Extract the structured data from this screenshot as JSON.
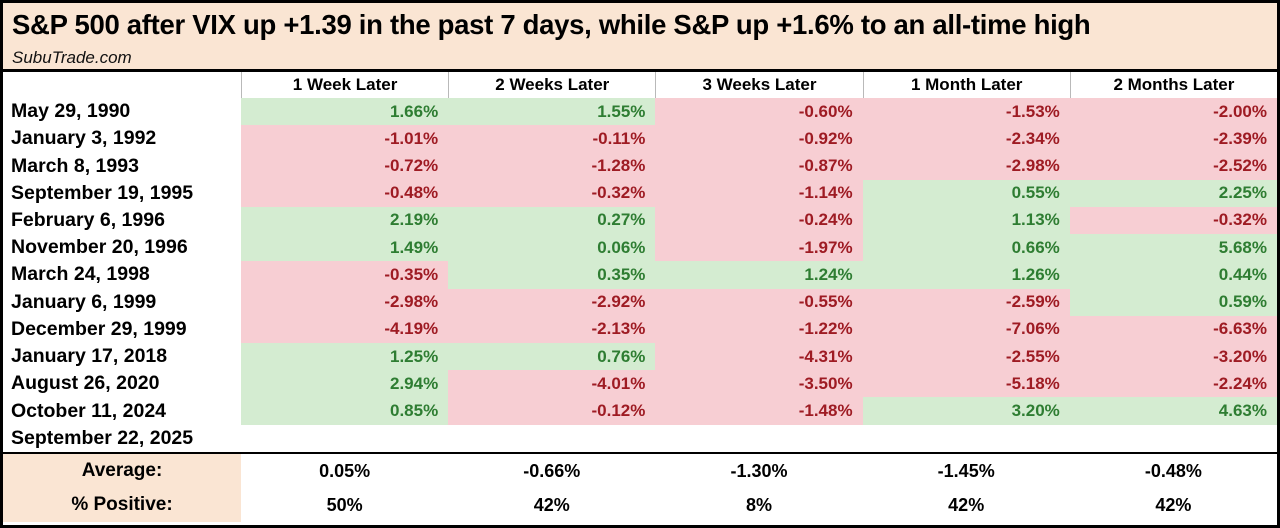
{
  "chart_data": {
    "type": "table",
    "title": "S&P 500 after VIX up +1.39 in the past 7 days, while S&P up +1.6% to an all-time high",
    "source": "SubuTrade.com",
    "columns": [
      "1 Week Later",
      "2 Weeks Later",
      "3 Weeks Later",
      "1 Month Later",
      "2 Months Later"
    ],
    "rows": [
      {
        "date": "May 29, 1990",
        "values": [
          "1.66%",
          "1.55%",
          "-0.60%",
          "-1.53%",
          "-2.00%"
        ]
      },
      {
        "date": "January 3, 1992",
        "values": [
          "-1.01%",
          "-0.11%",
          "-0.92%",
          "-2.34%",
          "-2.39%"
        ]
      },
      {
        "date": "March 8, 1993",
        "values": [
          "-0.72%",
          "-1.28%",
          "-0.87%",
          "-2.98%",
          "-2.52%"
        ]
      },
      {
        "date": "September 19, 1995",
        "values": [
          "-0.48%",
          "-0.32%",
          "-1.14%",
          "0.55%",
          "2.25%"
        ]
      },
      {
        "date": "February 6, 1996",
        "values": [
          "2.19%",
          "0.27%",
          "-0.24%",
          "1.13%",
          "-0.32%"
        ]
      },
      {
        "date": "November 20, 1996",
        "values": [
          "1.49%",
          "0.06%",
          "-1.97%",
          "0.66%",
          "5.68%"
        ]
      },
      {
        "date": "March 24, 1998",
        "values": [
          "-0.35%",
          "0.35%",
          "1.24%",
          "1.26%",
          "0.44%"
        ]
      },
      {
        "date": "January 6, 1999",
        "values": [
          "-2.98%",
          "-2.92%",
          "-0.55%",
          "-2.59%",
          "0.59%"
        ]
      },
      {
        "date": "December 29, 1999",
        "values": [
          "-4.19%",
          "-2.13%",
          "-1.22%",
          "-7.06%",
          "-6.63%"
        ]
      },
      {
        "date": "January 17, 2018",
        "values": [
          "1.25%",
          "0.76%",
          "-4.31%",
          "-2.55%",
          "-3.20%"
        ]
      },
      {
        "date": "August 26, 2020",
        "values": [
          "2.94%",
          "-4.01%",
          "-3.50%",
          "-5.18%",
          "-2.24%"
        ]
      },
      {
        "date": "October 11, 2024",
        "values": [
          "0.85%",
          "-0.12%",
          "-1.48%",
          "3.20%",
          "4.63%"
        ]
      },
      {
        "date": "September 22, 2025",
        "values": [
          "",
          "",
          "",
          "",
          ""
        ]
      }
    ],
    "summary": [
      {
        "label": "Average:",
        "values": [
          "0.05%",
          "-0.66%",
          "-1.30%",
          "-1.45%",
          "-0.48%"
        ]
      },
      {
        "label": "% Positive:",
        "values": [
          "50%",
          "42%",
          "8%",
          "42%",
          "42%"
        ]
      }
    ]
  },
  "colors": {
    "title_bg": "#fae5d3",
    "positive_bg": "#d4ecd1",
    "negative_bg": "#f7ced3",
    "positive_text": "#2e7d32",
    "negative_text": "#9e1b23",
    "border": "#000000"
  }
}
